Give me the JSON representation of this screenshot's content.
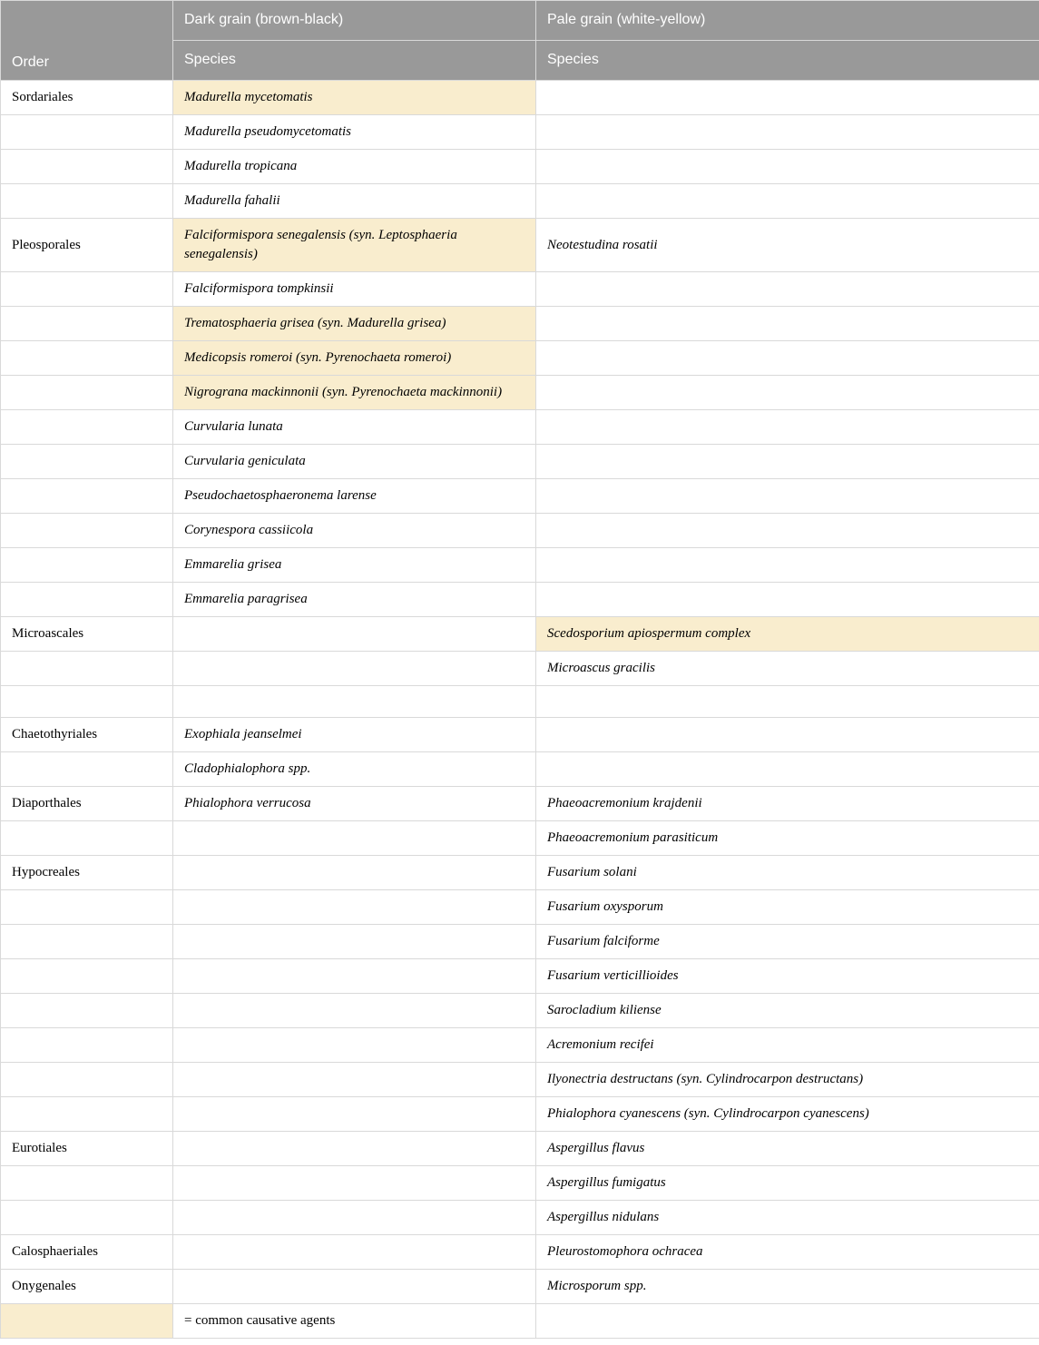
{
  "colors": {
    "header_bg": "#999999",
    "header_fg": "#ffffff",
    "border": "#d9d9d9",
    "highlight": "#f9edce",
    "bg": "#ffffff"
  },
  "columns": {
    "order_header": "Order",
    "dark_header": "Dark grain (brown-black)",
    "pale_header": "Pale grain (white-yellow)",
    "species_subheader": "Species"
  },
  "legend": {
    "text": "= common causative agents"
  },
  "rows": [
    {
      "order": "Sordariales",
      "dark": "Madurella mycetomatis",
      "dark_hl": true,
      "pale": ""
    },
    {
      "order": "",
      "dark": "Madurella pseudomycetomatis",
      "dark_hl": false,
      "pale": ""
    },
    {
      "order": "",
      "dark": "Madurella tropicana",
      "dark_hl": false,
      "pale": ""
    },
    {
      "order": "",
      "dark": "Madurella fahalii",
      "dark_hl": false,
      "pale": ""
    },
    {
      "order": "Pleosporales",
      "dark": "Falciformispora senegalensis (syn. Leptosphaeria senegalensis)",
      "dark_hl": true,
      "pale": "Neotestudina rosatii"
    },
    {
      "order": "",
      "dark": "Falciformispora tompkinsii",
      "dark_hl": false,
      "pale": ""
    },
    {
      "order": "",
      "dark": "Trematosphaeria grisea (syn. Madurella grisea)",
      "dark_hl": true,
      "pale": ""
    },
    {
      "order": "",
      "dark": "Medicopsis romeroi (syn. Pyrenochaeta romeroi)",
      "dark_hl": true,
      "pale": ""
    },
    {
      "order": "",
      "dark": "Nigrograna mackinnonii (syn. Pyrenochaeta mackinnonii)",
      "dark_hl": true,
      "pale": ""
    },
    {
      "order": "",
      "dark": "Curvularia lunata",
      "dark_hl": false,
      "pale": ""
    },
    {
      "order": "",
      "dark": "Curvularia geniculata",
      "dark_hl": false,
      "pale": ""
    },
    {
      "order": "",
      "dark": "Pseudochaetosphaeronema larense",
      "dark_hl": false,
      "pale": ""
    },
    {
      "order": "",
      "dark": "Corynespora cassiicola",
      "dark_hl": false,
      "pale": ""
    },
    {
      "order": "",
      "dark": "Emmarelia grisea",
      "dark_hl": false,
      "pale": ""
    },
    {
      "order": "",
      "dark": "Emmarelia paragrisea",
      "dark_hl": false,
      "pale": ""
    },
    {
      "order": "Microascales",
      "dark": "",
      "dark_hl": false,
      "pale": "Scedosporium apiospermum complex",
      "pale_hl": true
    },
    {
      "order": "",
      "dark": "",
      "dark_hl": false,
      "pale": "Microascus gracilis"
    },
    {
      "order": "",
      "dark": "",
      "dark_hl": false,
      "pale": ""
    },
    {
      "order": "Chaetothyriales",
      "dark": "Exophiala jeanselmei",
      "dark_hl": false,
      "pale": ""
    },
    {
      "order": "",
      "dark_html": "<i>Cladophialophora</i> spp.",
      "dark_hl": false,
      "pale": ""
    },
    {
      "order": "Diaporthales",
      "dark": "Phialophora verrucosa",
      "dark_hl": false,
      "pale": "Phaeoacremonium krajdenii"
    },
    {
      "order": "",
      "dark": "",
      "dark_hl": false,
      "pale": "Phaeoacremonium parasiticum"
    },
    {
      "order": "Hypocreales",
      "dark": "",
      "dark_hl": false,
      "pale": "Fusarium solani"
    },
    {
      "order": "",
      "dark": "",
      "dark_hl": false,
      "pale": "Fusarium oxysporum"
    },
    {
      "order": "",
      "dark": "",
      "dark_hl": false,
      "pale": "Fusarium falciforme"
    },
    {
      "order": "",
      "dark": "",
      "dark_hl": false,
      "pale": "Fusarium verticillioides"
    },
    {
      "order": "",
      "dark": "",
      "dark_hl": false,
      "pale": "Sarocladium kiliense"
    },
    {
      "order": "",
      "dark": "",
      "dark_hl": false,
      "pale": "Acremonium recifei"
    },
    {
      "order": "",
      "dark": "",
      "dark_hl": false,
      "pale": "Ilyonectria destructans (syn. Cylindrocarpon destructans)"
    },
    {
      "order": "",
      "dark": "",
      "dark_hl": false,
      "pale": "Phialophora cyanescens (syn. Cylindrocarpon cyanescens)"
    },
    {
      "order": "Eurotiales",
      "dark": "",
      "dark_hl": false,
      "pale": "Aspergillus flavus"
    },
    {
      "order": "",
      "dark": "",
      "dark_hl": false,
      "pale": "Aspergillus fumigatus"
    },
    {
      "order": "",
      "dark": "",
      "dark_hl": false,
      "pale": "Aspergillus nidulans"
    },
    {
      "order": "Calosphaeriales",
      "dark": "",
      "dark_hl": false,
      "pale": "Pleurostomophora ochracea"
    },
    {
      "order": "Onygenales",
      "dark": "",
      "dark_hl": false,
      "pale_html": "<i>Microsporum</i> spp."
    }
  ]
}
